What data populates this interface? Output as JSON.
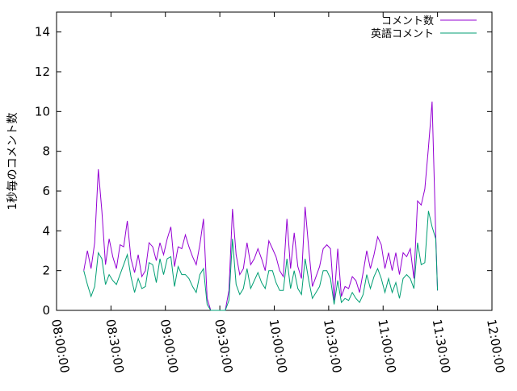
{
  "chart_data": {
    "type": "line",
    "ylabel": "1秒毎のコメント数",
    "xlabel": "",
    "title": "",
    "ylim": [
      0,
      15
    ],
    "xlim": [
      "08:00:00",
      "12:00:00"
    ],
    "yticks": [
      "0",
      "2",
      "4",
      "6",
      "8",
      "10",
      "12",
      "14"
    ],
    "xticks": [
      "08:00:00",
      "08:30:00",
      "09:00:00",
      "09:30:00",
      "10:00:00",
      "10:30:00",
      "11:00:00",
      "11:30:00",
      "12:00:00"
    ],
    "legend_position": "top-right",
    "grid": false,
    "series": [
      {
        "name": "コメント数",
        "color": "#9400d3",
        "points": [
          [
            "08:15:00",
            2.0
          ],
          [
            "08:17:00",
            3.0
          ],
          [
            "08:19:00",
            2.1
          ],
          [
            "08:21:00",
            3.4
          ],
          [
            "08:23:00",
            7.1
          ],
          [
            "08:25:00",
            5.0
          ],
          [
            "08:27:00",
            2.3
          ],
          [
            "08:29:00",
            3.6
          ],
          [
            "08:31:00",
            2.7
          ],
          [
            "08:33:00",
            2.1
          ],
          [
            "08:35:00",
            3.3
          ],
          [
            "08:37:00",
            3.2
          ],
          [
            "08:39:00",
            4.5
          ],
          [
            "08:41:00",
            2.6
          ],
          [
            "08:43:00",
            1.9
          ],
          [
            "08:45:00",
            2.8
          ],
          [
            "08:47:00",
            1.7
          ],
          [
            "08:49:00",
            2.0
          ],
          [
            "08:51:00",
            3.4
          ],
          [
            "08:53:00",
            3.2
          ],
          [
            "08:55:00",
            2.5
          ],
          [
            "08:57:00",
            3.4
          ],
          [
            "08:59:00",
            2.8
          ],
          [
            "09:01:00",
            3.6
          ],
          [
            "09:03:00",
            4.2
          ],
          [
            "09:05:00",
            2.2
          ],
          [
            "09:07:00",
            3.2
          ],
          [
            "09:09:00",
            3.1
          ],
          [
            "09:11:00",
            3.8
          ],
          [
            "09:13:00",
            3.2
          ],
          [
            "09:15:00",
            2.7
          ],
          [
            "09:17:00",
            2.3
          ],
          [
            "09:19:00",
            3.3
          ],
          [
            "09:21:00",
            4.6
          ],
          [
            "09:23:00",
            0.6
          ],
          [
            "09:25:00",
            0.0
          ],
          [
            "09:33:00",
            0.0
          ],
          [
            "09:35:00",
            1.0
          ],
          [
            "09:37:00",
            5.1
          ],
          [
            "09:39:00",
            2.8
          ],
          [
            "09:41:00",
            1.8
          ],
          [
            "09:43:00",
            2.1
          ],
          [
            "09:45:00",
            3.4
          ],
          [
            "09:47:00",
            2.3
          ],
          [
            "09:49:00",
            2.6
          ],
          [
            "09:51:00",
            3.1
          ],
          [
            "09:53:00",
            2.6
          ],
          [
            "09:55:00",
            2.0
          ],
          [
            "09:57:00",
            3.5
          ],
          [
            "09:59:00",
            3.1
          ],
          [
            "10:01:00",
            2.7
          ],
          [
            "10:03:00",
            2.0
          ],
          [
            "10:05:00",
            1.7
          ],
          [
            "10:07:00",
            4.6
          ],
          [
            "10:09:00",
            2.1
          ],
          [
            "10:11:00",
            3.9
          ],
          [
            "10:13:00",
            2.2
          ],
          [
            "10:15:00",
            1.6
          ],
          [
            "10:17:00",
            5.2
          ],
          [
            "10:19:00",
            3.1
          ],
          [
            "10:21:00",
            1.2
          ],
          [
            "10:23:00",
            1.7
          ],
          [
            "10:25:00",
            2.2
          ],
          [
            "10:27:00",
            3.1
          ],
          [
            "10:29:00",
            3.3
          ],
          [
            "10:31:00",
            3.1
          ],
          [
            "10:33:00",
            0.5
          ],
          [
            "10:35:00",
            3.1
          ],
          [
            "10:37:00",
            0.7
          ],
          [
            "10:39:00",
            1.2
          ],
          [
            "10:41:00",
            1.1
          ],
          [
            "10:43:00",
            1.7
          ],
          [
            "10:45:00",
            1.5
          ],
          [
            "10:47:00",
            0.9
          ],
          [
            "10:49:00",
            1.9
          ],
          [
            "10:51:00",
            3.0
          ],
          [
            "10:53:00",
            2.1
          ],
          [
            "10:55:00",
            2.8
          ],
          [
            "10:57:00",
            3.7
          ],
          [
            "10:59:00",
            3.3
          ],
          [
            "11:01:00",
            2.1
          ],
          [
            "11:03:00",
            2.9
          ],
          [
            "11:05:00",
            2.0
          ],
          [
            "11:07:00",
            2.9
          ],
          [
            "11:09:00",
            1.8
          ],
          [
            "11:11:00",
            2.9
          ],
          [
            "11:13:00",
            2.7
          ],
          [
            "11:15:00",
            3.1
          ],
          [
            "11:17:00",
            1.6
          ],
          [
            "11:19:00",
            5.5
          ],
          [
            "11:21:00",
            5.3
          ],
          [
            "11:23:00",
            6.1
          ],
          [
            "11:25:00",
            8.2
          ],
          [
            "11:27:00",
            10.5
          ],
          [
            "11:29:00",
            3.8
          ],
          [
            "11:30:00",
            1.0
          ]
        ]
      },
      {
        "name": "英語コメント",
        "color": "#009e73",
        "points": [
          [
            "08:15:00",
            2.0
          ],
          [
            "08:17:00",
            1.3
          ],
          [
            "08:19:00",
            0.7
          ],
          [
            "08:21:00",
            1.2
          ],
          [
            "08:23:00",
            2.9
          ],
          [
            "08:25:00",
            2.6
          ],
          [
            "08:27:00",
            1.3
          ],
          [
            "08:29:00",
            1.8
          ],
          [
            "08:31:00",
            1.5
          ],
          [
            "08:33:00",
            1.3
          ],
          [
            "08:35:00",
            1.8
          ],
          [
            "08:37:00",
            2.3
          ],
          [
            "08:39:00",
            2.8
          ],
          [
            "08:41:00",
            1.7
          ],
          [
            "08:43:00",
            0.9
          ],
          [
            "08:45:00",
            1.6
          ],
          [
            "08:47:00",
            1.1
          ],
          [
            "08:49:00",
            1.2
          ],
          [
            "08:51:00",
            2.4
          ],
          [
            "08:53:00",
            2.3
          ],
          [
            "08:55:00",
            1.4
          ],
          [
            "08:57:00",
            2.6
          ],
          [
            "08:59:00",
            1.8
          ],
          [
            "09:01:00",
            2.6
          ],
          [
            "09:03:00",
            2.7
          ],
          [
            "09:05:00",
            1.2
          ],
          [
            "09:07:00",
            2.2
          ],
          [
            "09:09:00",
            1.8
          ],
          [
            "09:11:00",
            1.8
          ],
          [
            "09:13:00",
            1.6
          ],
          [
            "09:15:00",
            1.2
          ],
          [
            "09:17:00",
            0.9
          ],
          [
            "09:19:00",
            1.8
          ],
          [
            "09:21:00",
            2.1
          ],
          [
            "09:23:00",
            0.3
          ],
          [
            "09:25:00",
            0.0
          ],
          [
            "09:33:00",
            0.0
          ],
          [
            "09:35:00",
            0.5
          ],
          [
            "09:37:00",
            3.6
          ],
          [
            "09:39:00",
            1.3
          ],
          [
            "09:41:00",
            0.8
          ],
          [
            "09:43:00",
            1.1
          ],
          [
            "09:45:00",
            2.1
          ],
          [
            "09:47:00",
            1.1
          ],
          [
            "09:49:00",
            1.5
          ],
          [
            "09:51:00",
            1.9
          ],
          [
            "09:53:00",
            1.4
          ],
          [
            "09:55:00",
            1.1
          ],
          [
            "09:57:00",
            2.0
          ],
          [
            "09:59:00",
            2.0
          ],
          [
            "10:01:00",
            1.4
          ],
          [
            "10:03:00",
            1.0
          ],
          [
            "10:05:00",
            1.0
          ],
          [
            "10:07:00",
            2.6
          ],
          [
            "10:09:00",
            1.1
          ],
          [
            "10:11:00",
            2.0
          ],
          [
            "10:13:00",
            1.1
          ],
          [
            "10:15:00",
            0.8
          ],
          [
            "10:17:00",
            2.6
          ],
          [
            "10:19:00",
            1.5
          ],
          [
            "10:21:00",
            0.6
          ],
          [
            "10:23:00",
            0.9
          ],
          [
            "10:25:00",
            1.2
          ],
          [
            "10:27:00",
            2.0
          ],
          [
            "10:29:00",
            2.0
          ],
          [
            "10:31:00",
            1.6
          ],
          [
            "10:33:00",
            0.3
          ],
          [
            "10:35:00",
            1.5
          ],
          [
            "10:37:00",
            0.4
          ],
          [
            "10:39:00",
            0.6
          ],
          [
            "10:41:00",
            0.5
          ],
          [
            "10:43:00",
            0.9
          ],
          [
            "10:45:00",
            0.6
          ],
          [
            "10:47:00",
            0.4
          ],
          [
            "10:49:00",
            0.8
          ],
          [
            "10:51:00",
            1.8
          ],
          [
            "10:53:00",
            1.1
          ],
          [
            "10:55:00",
            1.7
          ],
          [
            "10:57:00",
            2.1
          ],
          [
            "10:59:00",
            1.6
          ],
          [
            "11:01:00",
            0.9
          ],
          [
            "11:03:00",
            1.6
          ],
          [
            "11:05:00",
            0.9
          ],
          [
            "11:07:00",
            1.4
          ],
          [
            "11:09:00",
            0.6
          ],
          [
            "11:11:00",
            1.6
          ],
          [
            "11:13:00",
            1.8
          ],
          [
            "11:15:00",
            1.6
          ],
          [
            "11:17:00",
            1.1
          ],
          [
            "11:19:00",
            3.4
          ],
          [
            "11:21:00",
            2.3
          ],
          [
            "11:23:00",
            2.4
          ],
          [
            "11:25:00",
            5.0
          ],
          [
            "11:27:00",
            4.2
          ],
          [
            "11:29:00",
            3.6
          ],
          [
            "11:30:00",
            1.0
          ]
        ]
      }
    ]
  }
}
